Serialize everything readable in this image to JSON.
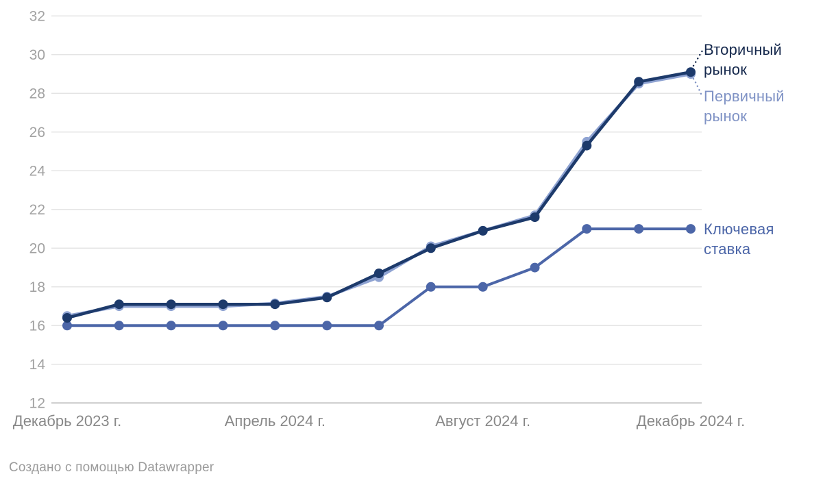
{
  "chart_data": {
    "type": "line",
    "title": "",
    "x_unit": "month",
    "n_points": 13,
    "x_range_note": "monthly from December 2023 to December 2024",
    "x_tick_labels": [
      {
        "index": 0,
        "label": "Декабрь 2023 г."
      },
      {
        "index": 4,
        "label": "Апрель 2024 г."
      },
      {
        "index": 8,
        "label": "Август 2024 г."
      },
      {
        "index": 12,
        "label": "Декабрь 2024 г."
      }
    ],
    "ylim": [
      12,
      32
    ],
    "ytick_step": 2,
    "grid": true,
    "legend_position": "direct-line-labels-right",
    "series": [
      {
        "name": "Вторичный рынок",
        "color": "#1d3a6b",
        "label_color": "#16294d",
        "values": [
          16.4,
          17.1,
          17.1,
          17.1,
          17.1,
          17.45,
          18.7,
          20.0,
          20.9,
          21.6,
          25.3,
          28.6,
          29.1
        ]
      },
      {
        "name": "Первичный рынок",
        "color": "#8fa3d2",
        "label_color": "#8093c5",
        "values": [
          16.5,
          17.0,
          17.0,
          17.0,
          17.15,
          17.5,
          18.5,
          20.1,
          20.9,
          21.7,
          25.5,
          28.5,
          29.0
        ]
      },
      {
        "name": "Ключевая ставка",
        "color": "#4c66a8",
        "label_color": "#4c66a8",
        "values": [
          16,
          16,
          16,
          16,
          16,
          16,
          16,
          18,
          18,
          19,
          21,
          21,
          21
        ]
      }
    ],
    "colors": {
      "background": "#ffffff",
      "grid": "#e4e4e4",
      "baseline": "#c9c9c9",
      "y_tick_text": "#a2a2a2",
      "x_tick_text": "#888888"
    }
  },
  "footer": {
    "text": "Создано с помощью Datawrapper"
  }
}
